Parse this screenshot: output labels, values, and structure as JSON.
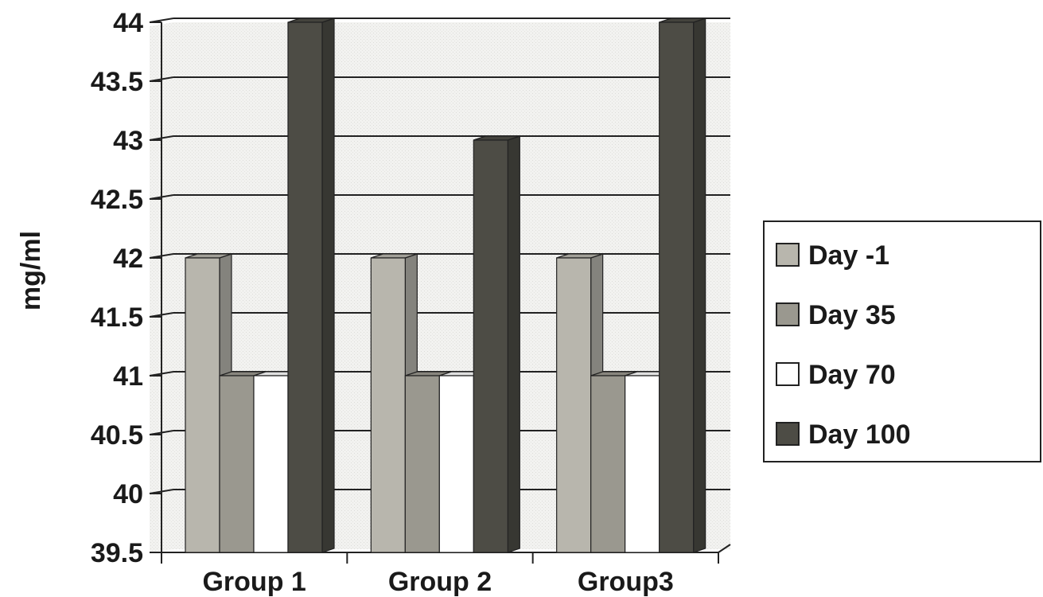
{
  "chart_data": {
    "type": "bar",
    "title": "",
    "xlabel": "",
    "ylabel": "mg/ml",
    "categories": [
      "Group 1",
      "Group 2",
      "Group3"
    ],
    "ylim": [
      39.5,
      44
    ],
    "yticks": [
      "39.5",
      "40",
      "40.5",
      "41",
      "41.5",
      "42",
      "42.5",
      "43",
      "43.5",
      "44"
    ],
    "grid": true,
    "style": "3d-clustered",
    "legend_position": "right",
    "series": [
      {
        "name": "Day -1",
        "values": [
          42,
          42,
          42
        ],
        "color": "#b8b6ad"
      },
      {
        "name": "Day 35",
        "values": [
          41,
          41,
          41
        ],
        "color": "#9a988f"
      },
      {
        "name": "Day 70",
        "values": [
          41,
          41,
          41
        ],
        "color": "#ffffff"
      },
      {
        "name": "Day 100",
        "values": [
          44,
          43,
          44
        ],
        "color": "#4d4c45"
      }
    ]
  }
}
